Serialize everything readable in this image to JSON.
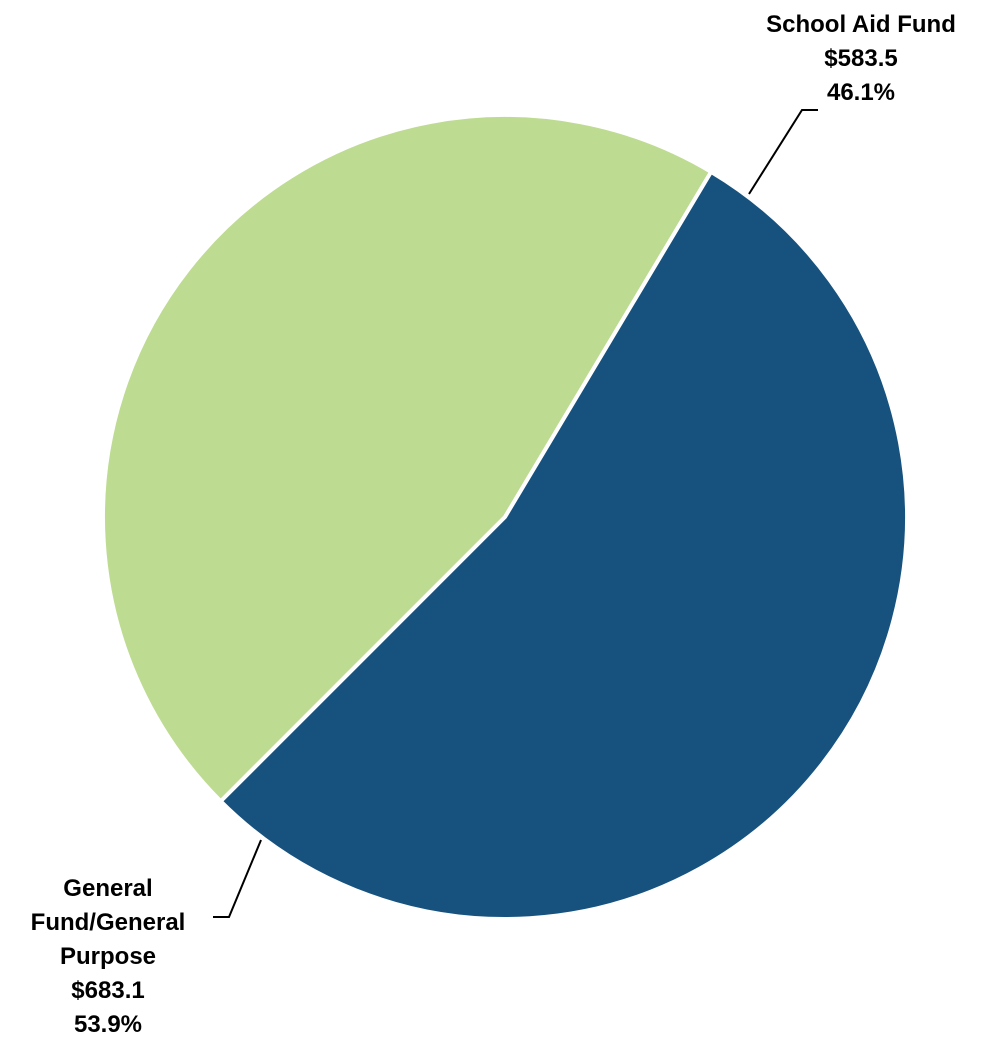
{
  "chart_data": {
    "type": "pie",
    "title": "",
    "slices": [
      {
        "name": "School Aid Fund",
        "label_lines": [
          "School Aid Fund"
        ],
        "value_label": "$583.5",
        "percent_label": "46.1%",
        "value": 583.5,
        "percent": 46.1,
        "color": "#bddb91"
      },
      {
        "name": "General Fund/General Purpose",
        "label_lines": [
          "General",
          "Fund/General",
          "Purpose"
        ],
        "value_label": "$683.1",
        "percent_label": "53.9%",
        "value": 683.1,
        "percent": 53.9,
        "color": "#17527e"
      }
    ],
    "slice_border_color": "#ffffff",
    "leader_line_color": "#000000"
  }
}
